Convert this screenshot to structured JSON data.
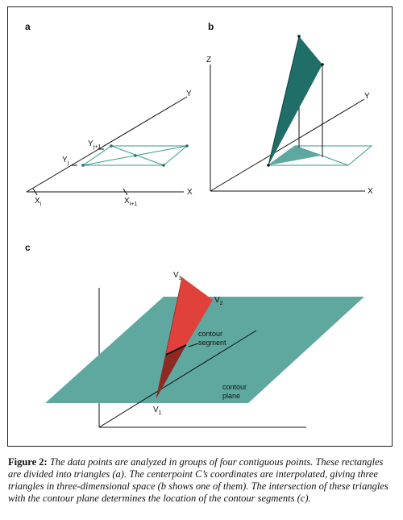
{
  "panels": {
    "a": {
      "letter": "a",
      "labels": {
        "y": "Y",
        "x": "X",
        "yj": "Y",
        "yj_sub": "j",
        "yj1": "Y",
        "yj1_sub": "j+1",
        "xi": "X",
        "xi_sub": "i",
        "xi1": "X",
        "xi1_sub": "i+1"
      }
    },
    "b": {
      "letter": "b",
      "labels": {
        "z": "Z",
        "y": "Y",
        "x": "X"
      }
    },
    "c": {
      "letter": "c",
      "labels": {
        "v1": "V",
        "v1_sub": "1",
        "v2": "V",
        "v2_sub": "2",
        "v3": "V",
        "v3_sub": "3",
        "contour_segment_1": "contour",
        "contour_segment_2": "segment",
        "contour_plane_1": "contour",
        "contour_plane_2": "plane"
      }
    }
  },
  "colors": {
    "teal_line": "#3a9a92",
    "teal_fill": "#5fa8a0",
    "teal_dark": "#1f6e68",
    "red": "#e0413a",
    "red_dark": "#8e2a24"
  },
  "caption": {
    "head": "Figure 2:",
    "text": " The data points are analyzed in groups of four contiguous points. These rectangles are divided into triangles (a). The centerpoint C’s coordinates are interpolated, giving three triangles in three-dimensional space (b shows one of them). The intersection of these triangles with the contour plane determines the location of the contour segments (c)."
  }
}
